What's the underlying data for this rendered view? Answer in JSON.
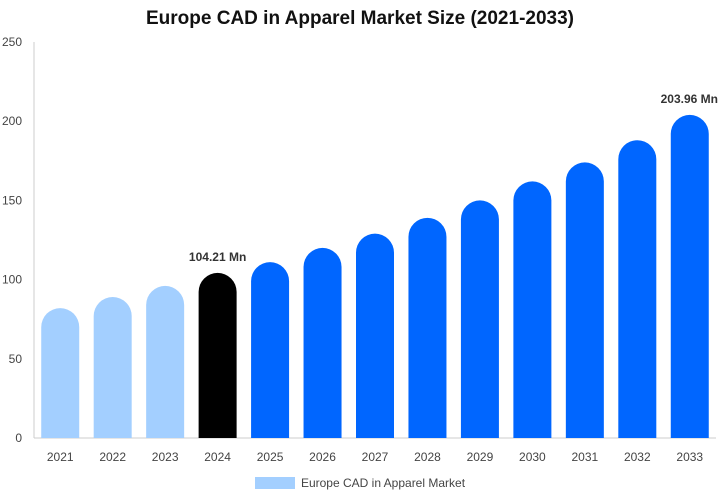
{
  "chart_data": {
    "type": "bar",
    "title": "Europe CAD in Apparel Market Size (2021-2033)",
    "categories": [
      "2021",
      "2022",
      "2023",
      "2024",
      "2025",
      "2026",
      "2027",
      "2028",
      "2029",
      "2030",
      "2031",
      "2032",
      "2033"
    ],
    "series": [
      {
        "name": "Europe CAD in Apparel Market",
        "values": [
          82,
          89,
          96,
          104.21,
          111,
          120,
          129,
          139,
          150,
          162,
          174,
          188,
          203.96
        ]
      }
    ],
    "data_labels": [
      {
        "category": "2024",
        "text": "104.21 Mn"
      },
      {
        "category": "2033",
        "text": "203.96 Mn"
      }
    ],
    "ylim": [
      0,
      250
    ],
    "yticks": [
      0,
      50,
      100,
      150,
      200,
      250
    ],
    "grid": false,
    "legend_position": "bottom",
    "colors": {
      "historical": "#a3cfff",
      "base_year": "#000000",
      "forecast": "#0066ff",
      "legend_swatch": "#a3cfff",
      "axis": "#cccccc"
    },
    "bar_color_groups": [
      "historical",
      "historical",
      "historical",
      "base_year",
      "forecast",
      "forecast",
      "forecast",
      "forecast",
      "forecast",
      "forecast",
      "forecast",
      "forecast",
      "forecast"
    ]
  }
}
